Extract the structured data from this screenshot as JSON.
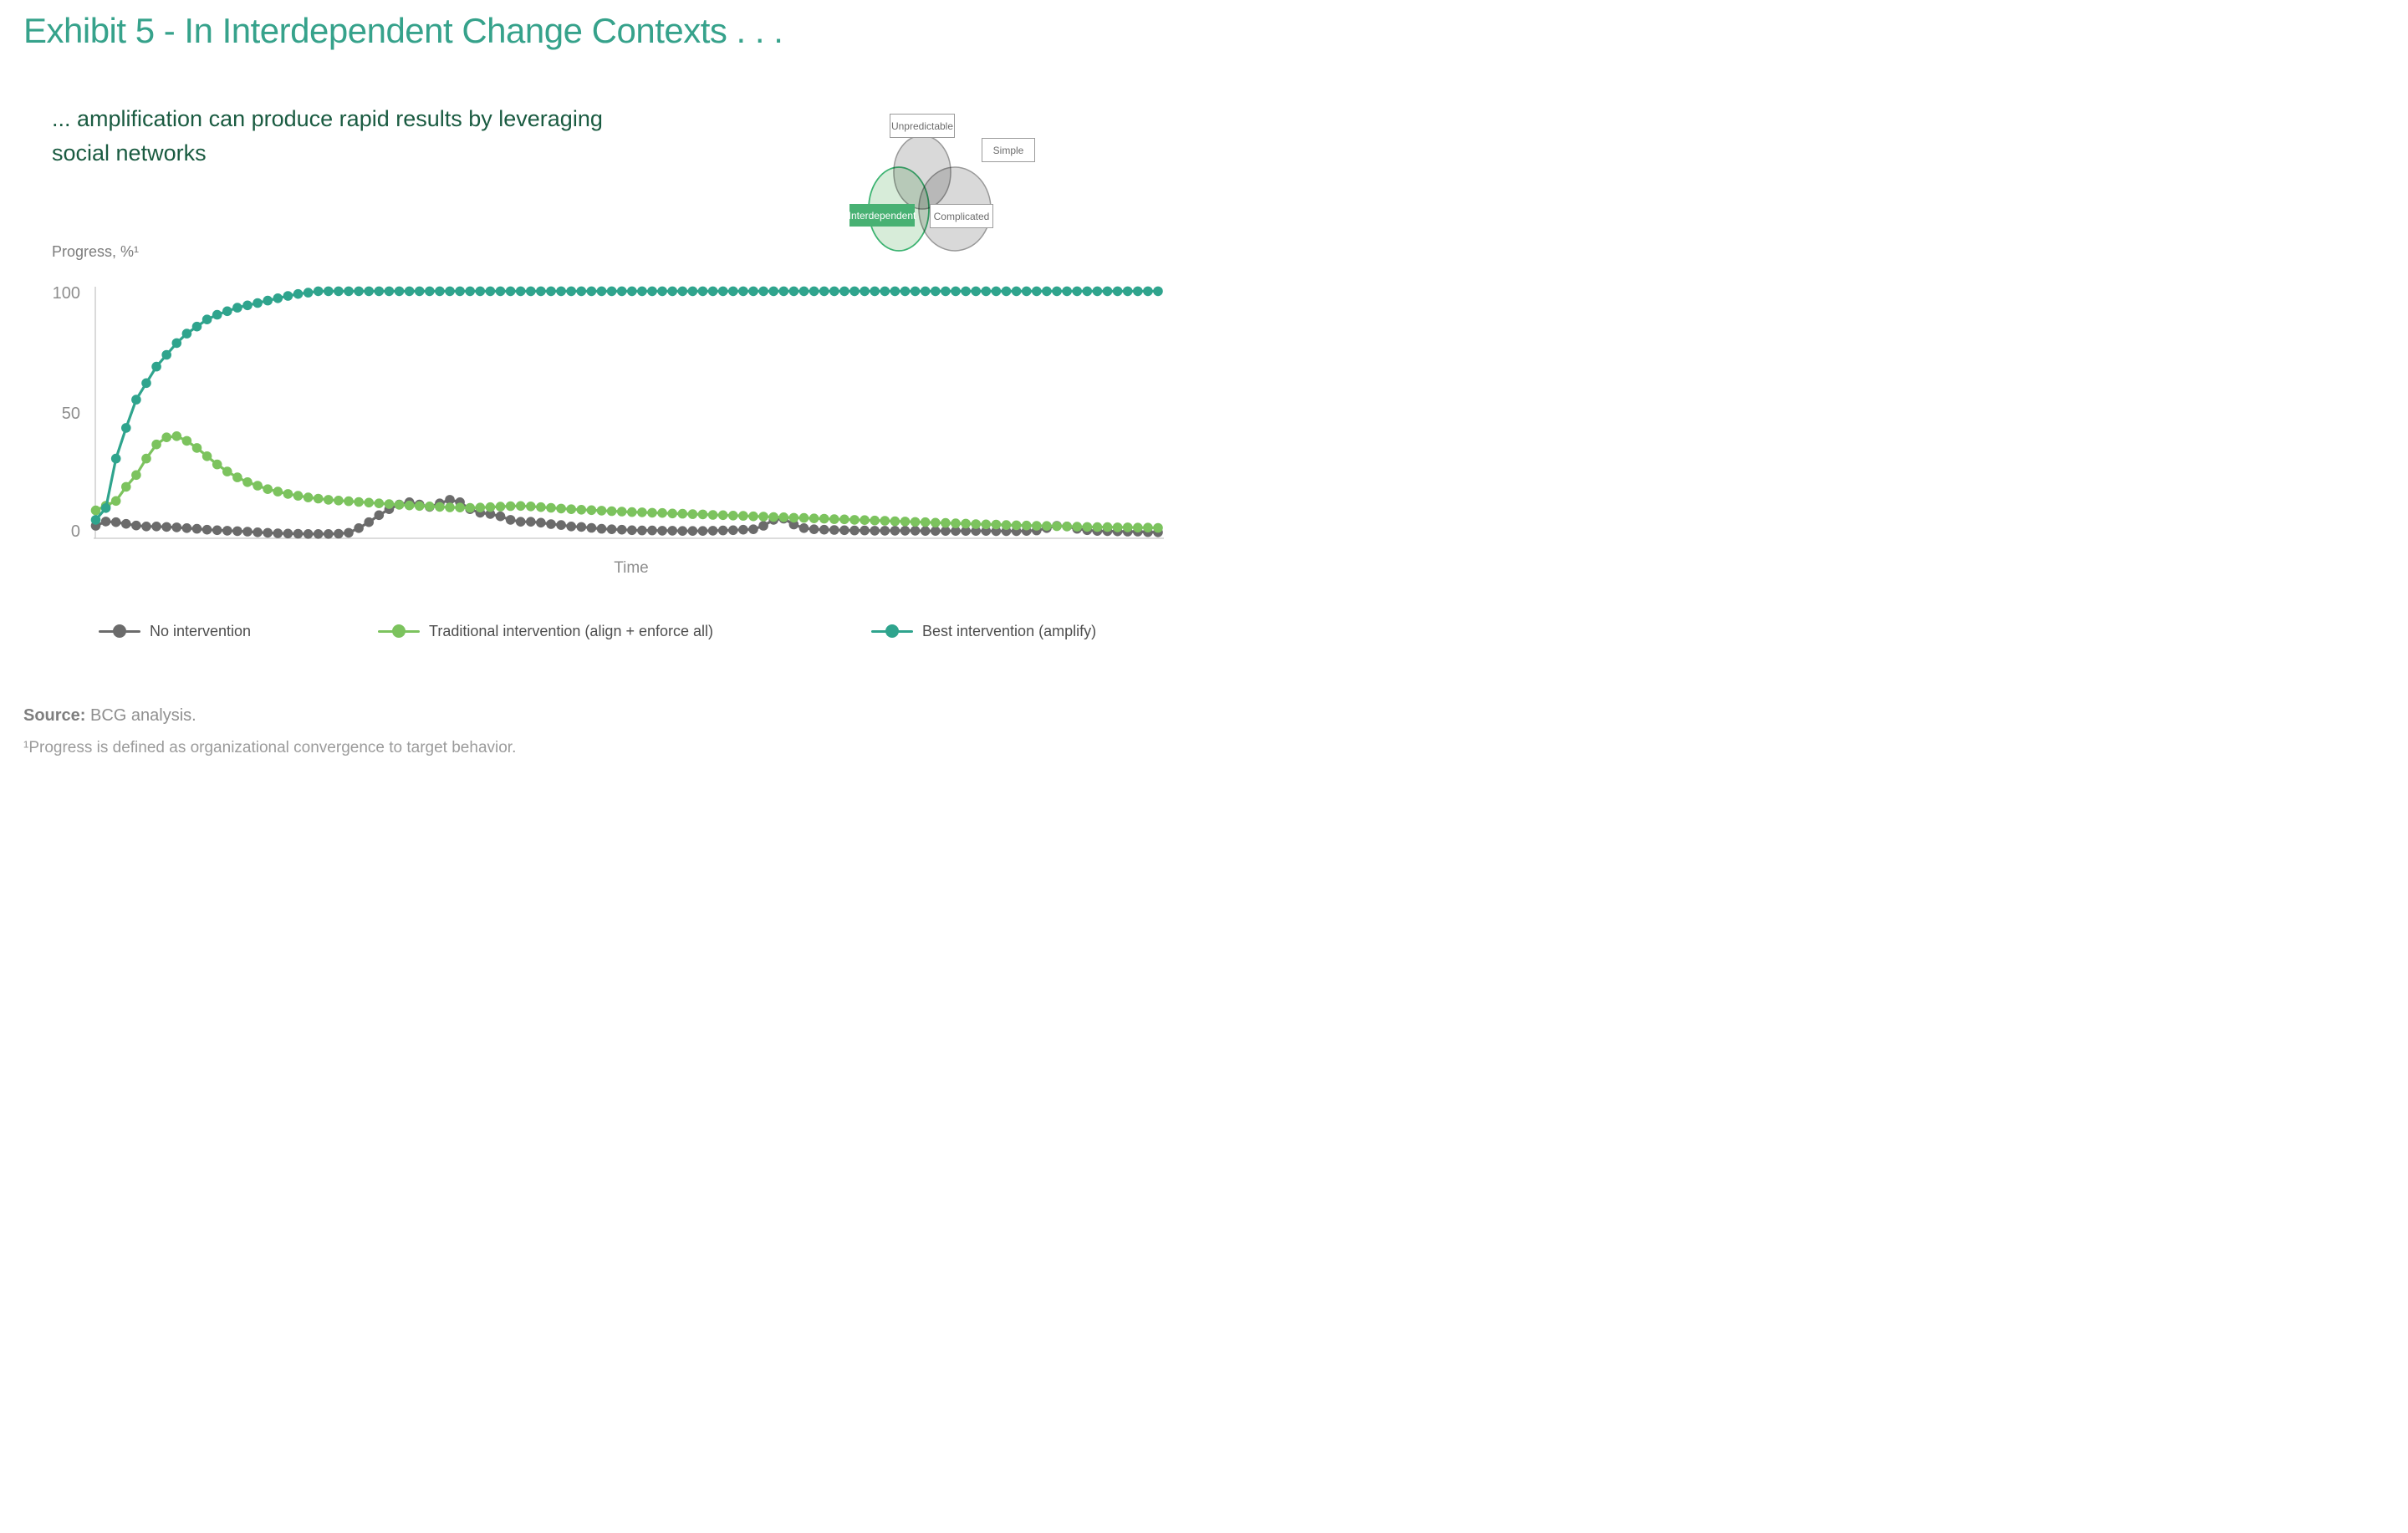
{
  "header": {
    "title": "Exhibit 5 - In Interdependent Change Contexts . . .",
    "subtitle_line1": "... amplification can produce rapid results by leveraging",
    "subtitle_line2": "social networks"
  },
  "venn": {
    "labels": {
      "unpredictable": "Unpredictable",
      "simple": "Simple",
      "interdependent": "Interdependent",
      "complicated": "Complicated"
    },
    "colors": {
      "gray_fill": "#d9d9d9",
      "gray_stroke": "#999999",
      "green_fill": "#d7ecd9",
      "green_stroke": "#3cb371",
      "badge_green": "#48B173"
    }
  },
  "chart_data": {
    "type": "line",
    "title": "",
    "ylabel": "Progress, %¹",
    "xlabel": "Time",
    "yticks": [
      "100",
      "50",
      "0"
    ],
    "ylim": [
      -2,
      105
    ],
    "x_points": 106,
    "grid": false,
    "legend_position": "bottom",
    "series": [
      {
        "name": "No intervention",
        "color": "#6B6B6B",
        "values": [
          2.5,
          4.3,
          4.0,
          3.3,
          2.6,
          2.2,
          2.2,
          2.0,
          1.8,
          1.5,
          1.2,
          0.8,
          0.6,
          0.4,
          0.2,
          0,
          -0.3,
          -0.5,
          -0.7,
          -0.8,
          -0.9,
          -1,
          -1,
          -1,
          -0.9,
          -0.5,
          1.5,
          4,
          7,
          9.5,
          11.5,
          12.5,
          11.5,
          10.5,
          12,
          13.5,
          12.5,
          9.5,
          8,
          7.5,
          6.5,
          5,
          4.2,
          4.2,
          3.8,
          3.2,
          2.8,
          2.2,
          2,
          1.6,
          1.2,
          1,
          0.8,
          0.6,
          0.5,
          0.5,
          0.4,
          0.4,
          0.3,
          0.3,
          0.3,
          0.4,
          0.5,
          0.6,
          0.8,
          1,
          2.5,
          5,
          5.5,
          3,
          1.5,
          1,
          0.8,
          0.7,
          0.6,
          0.5,
          0.5,
          0.4,
          0.4,
          0.4,
          0.4,
          0.4,
          0.3,
          0.3,
          0.3,
          0.3,
          0.3,
          0.3,
          0.3,
          0.2,
          0.2,
          0.2,
          0.3,
          0.5,
          1.5,
          2.5,
          2.2,
          1.2,
          0.6,
          0.3,
          0.2,
          0.1,
          0,
          0,
          -0.2,
          -0.3
        ]
      },
      {
        "name": "Traditional intervention (align + enforce all)",
        "color": "#7CC35E",
        "values": [
          9,
          11,
          13,
          19,
          24,
          31,
          37,
          40,
          40.5,
          38.5,
          35.5,
          32,
          28.5,
          25.5,
          23,
          21,
          19.5,
          18,
          17,
          16,
          15.2,
          14.5,
          14,
          13.5,
          13.2,
          12.9,
          12.6,
          12.3,
          12,
          11.7,
          11.4,
          11.1,
          10.9,
          10.7,
          10.5,
          10.3,
          10.2,
          10.1,
          10.2,
          10.4,
          10.6,
          10.8,
          10.9,
          10.7,
          10.4,
          10.1,
          9.8,
          9.5,
          9.3,
          9.1,
          8.9,
          8.7,
          8.5,
          8.3,
          8.2,
          8.0,
          7.9,
          7.7,
          7.6,
          7.4,
          7.3,
          7.1,
          7.0,
          6.8,
          6.7,
          6.5,
          6.4,
          6.2,
          6.1,
          5.9,
          5.8,
          5.6,
          5.5,
          5.3,
          5.2,
          5.0,
          4.9,
          4.7,
          4.6,
          4.4,
          4.3,
          4.1,
          4.0,
          3.8,
          3.7,
          3.5,
          3.4,
          3.2,
          3.1,
          3.0,
          2.8,
          2.7,
          2.6,
          2.5,
          2.4,
          2.3,
          2.2,
          2.1,
          2.0,
          1.9,
          1.9,
          1.8,
          1.8,
          1.7,
          1.7,
          1.6
        ]
      },
      {
        "name": "Best intervention (amplify)",
        "color": "#2FA48D",
        "values": [
          5,
          10,
          31,
          44,
          56,
          63,
          70,
          75,
          80,
          84,
          87,
          90,
          92,
          93.5,
          95,
          96,
          97,
          98,
          99,
          100,
          100.8,
          101.4,
          102,
          102,
          102,
          102,
          102,
          102,
          102,
          102,
          102,
          102,
          102,
          102,
          102,
          102,
          102,
          102,
          102,
          102,
          102,
          102,
          102,
          102,
          102,
          102,
          102,
          102,
          102,
          102,
          102,
          102,
          102,
          102,
          102,
          102,
          102,
          102,
          102,
          102,
          102,
          102,
          102,
          102,
          102,
          102,
          102,
          102,
          102,
          102,
          102,
          102,
          102,
          102,
          102,
          102,
          102,
          102,
          102,
          102,
          102,
          102,
          102,
          102,
          102,
          102,
          102,
          102,
          102,
          102,
          102,
          102,
          102,
          102,
          102,
          102,
          102,
          102,
          102,
          102,
          102,
          102,
          102,
          102,
          102,
          102
        ]
      }
    ]
  },
  "footer": {
    "source_label": "Source:",
    "source_text": " BCG analysis.",
    "footnote": "¹Progress is defined as organizational convergence to target behavior."
  }
}
